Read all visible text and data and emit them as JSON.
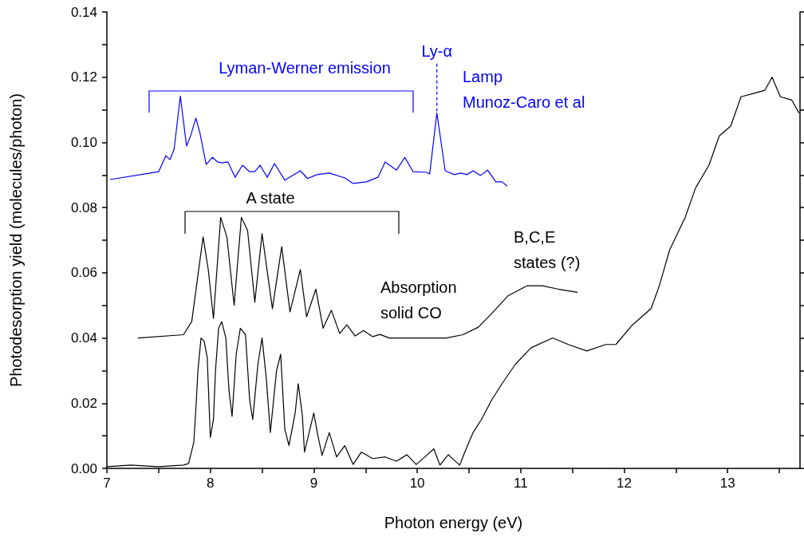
{
  "chart_data": {
    "type": "line",
    "xlabel": "Photon energy (eV)",
    "ylabel": "Photodesorption yield (molecules/photon)",
    "xlim": [
      7,
      13.7
    ],
    "xticks": [
      7,
      {
        "value": 7.5,
        "label": null
      },
      8,
      {
        "value": 8.5,
        "label": null
      },
      9,
      {
        "value": 9.5,
        "label": null
      },
      10,
      {
        "value": 10.5,
        "label": null
      },
      11,
      {
        "value": 11.5,
        "label": null
      },
      12,
      {
        "value": 12.5,
        "label": null
      },
      13,
      {
        "value": 13.5,
        "label": null
      }
    ],
    "ylim": [
      0,
      0.14
    ],
    "yticks": [
      {
        "value": 0,
        "label": "0.00"
      },
      {
        "value": 0.01,
        "label": null
      },
      {
        "value": 0.02,
        "label": "0.02"
      },
      {
        "value": 0.03,
        "label": null
      },
      {
        "value": 0.04,
        "label": "0.04"
      },
      {
        "value": 0.05,
        "label": null
      },
      {
        "value": 0.06,
        "label": "0.06"
      },
      {
        "value": 0.07,
        "label": null
      },
      {
        "value": 0.08,
        "label": "0.08"
      },
      {
        "value": 0.09,
        "label": null
      },
      {
        "value": 0.1,
        "label": "0.10"
      },
      {
        "value": 0.11,
        "label": null
      },
      {
        "value": 0.12,
        "label": "0.12"
      },
      {
        "value": 0.13,
        "label": null
      },
      {
        "value": 0.14,
        "label": "0.14"
      }
    ],
    "grid": false,
    "series": [
      {
        "color": "#000000",
        "x": [
          7.0,
          7.23,
          7.5,
          7.74,
          7.79,
          7.84,
          7.86,
          7.88,
          7.91,
          7.94,
          7.97,
          8.0,
          8.03,
          8.05,
          8.08,
          8.11,
          8.15,
          8.18,
          8.21,
          8.25,
          8.29,
          8.34,
          8.38,
          8.41,
          8.46,
          8.5,
          8.54,
          8.58,
          8.64,
          8.68,
          8.72,
          8.76,
          8.82,
          8.85,
          8.89,
          8.91,
          8.97,
          9.0,
          9.04,
          9.08,
          9.15,
          9.22,
          9.3,
          9.38,
          9.46,
          9.57,
          9.69,
          9.8,
          9.9,
          9.99,
          10.08,
          10.16,
          10.22,
          10.3,
          10.41,
          10.46,
          10.54,
          10.62,
          10.72,
          10.82,
          10.95,
          11.1,
          11.31,
          11.46,
          11.64,
          11.82,
          11.92,
          12.08,
          12.26,
          12.34,
          12.44,
          12.59,
          12.69,
          12.82,
          12.92,
          13.03,
          13.13,
          13.25,
          13.36,
          13.43,
          13.51,
          13.62,
          13.69
        ],
        "values": [
          0.0005,
          0.001,
          0.0005,
          0.001,
          0.0015,
          0.008,
          0.018,
          0.03,
          0.04,
          0.039,
          0.034,
          0.0095,
          0.015,
          0.03,
          0.043,
          0.045,
          0.04,
          0.024,
          0.016,
          0.035,
          0.043,
          0.041,
          0.021,
          0.015,
          0.032,
          0.04,
          0.028,
          0.011,
          0.03,
          0.035,
          0.012,
          0.007,
          0.017,
          0.026,
          0.016,
          0.005,
          0.013,
          0.017,
          0.01,
          0.004,
          0.011,
          0.0035,
          0.007,
          0.0012,
          0.005,
          0.003,
          0.0035,
          0.0022,
          0.0042,
          0.0012,
          0.0037,
          0.006,
          0.001,
          0.0042,
          0.001,
          0.005,
          0.011,
          0.015,
          0.021,
          0.026,
          0.032,
          0.037,
          0.04,
          0.038,
          0.036,
          0.038,
          0.038,
          0.044,
          0.049,
          0.056,
          0.067,
          0.077,
          0.086,
          0.093,
          0.102,
          0.105,
          0.114,
          0.115,
          0.116,
          0.12,
          0.114,
          0.113,
          0.109
        ]
      },
      {
        "color": "#000000",
        "x": [
          7.3,
          7.74,
          7.82,
          7.93,
          7.98,
          8.03,
          8.1,
          8.16,
          8.23,
          8.3,
          8.36,
          8.43,
          8.5,
          8.6,
          8.69,
          8.77,
          8.87,
          8.93,
          9.02,
          9.09,
          9.17,
          9.25,
          9.32,
          9.4,
          9.48,
          9.57,
          9.64,
          9.73,
          10.28,
          10.44,
          10.59,
          10.72,
          10.88,
          11.06,
          11.21,
          11.36,
          11.55
        ],
        "values": [
          0.04,
          0.041,
          0.045,
          0.071,
          0.061,
          0.046,
          0.077,
          0.071,
          0.05,
          0.077,
          0.073,
          0.051,
          0.072,
          0.049,
          0.068,
          0.048,
          0.061,
          0.0465,
          0.055,
          0.043,
          0.0485,
          0.0414,
          0.044,
          0.0406,
          0.0423,
          0.0404,
          0.0411,
          0.04,
          0.04,
          0.041,
          0.0433,
          0.0475,
          0.053,
          0.056,
          0.056,
          0.055,
          0.054
        ]
      },
      {
        "color": "#0000ff",
        "x": [
          7.03,
          7.42,
          7.5,
          7.57,
          7.61,
          7.65,
          7.71,
          7.77,
          7.81,
          7.86,
          7.9,
          7.96,
          8.02,
          8.07,
          8.11,
          8.17,
          8.24,
          8.31,
          8.38,
          8.43,
          8.48,
          8.55,
          8.62,
          8.72,
          8.87,
          8.94,
          9.03,
          9.15,
          9.3,
          9.38,
          9.51,
          9.62,
          9.69,
          9.8,
          9.88,
          9.96,
          10.09,
          10.12,
          10.19,
          10.27,
          10.36,
          10.42,
          10.48,
          10.54,
          10.61,
          10.68,
          10.76,
          10.82,
          10.87
        ],
        "values": [
          0.0886,
          0.0906,
          0.091,
          0.0959,
          0.0947,
          0.0979,
          0.1142,
          0.0989,
          0.1021,
          0.1074,
          0.1028,
          0.0932,
          0.0954,
          0.094,
          0.0937,
          0.094,
          0.0893,
          0.093,
          0.091,
          0.091,
          0.093,
          0.0893,
          0.0935,
          0.0884,
          0.0913,
          0.0889,
          0.0901,
          0.0906,
          0.0891,
          0.0874,
          0.0879,
          0.0893,
          0.094,
          0.0915,
          0.0954,
          0.091,
          0.0908,
          0.0903,
          0.109,
          0.0913,
          0.0901,
          0.0906,
          0.0901,
          0.0913,
          0.0898,
          0.0915,
          0.0879,
          0.0879,
          0.0866
        ]
      }
    ],
    "ref_lines": [
      {
        "axis": "x",
        "value": 10.19,
        "label": "Ly-α",
        "line_style": "dashed",
        "color": "#0000ff"
      }
    ],
    "annotations": [
      "Lyman-Werner emission",
      "Lamp\nMunoz-Caro et al",
      "A state",
      "Absorption\nsolid CO",
      "B,C,E\nstates (?)"
    ]
  }
}
